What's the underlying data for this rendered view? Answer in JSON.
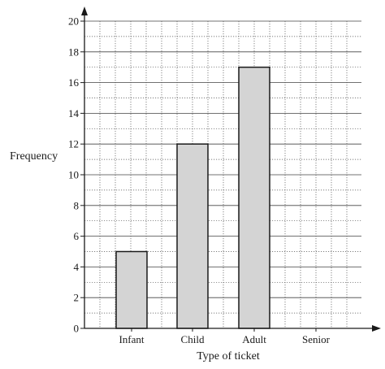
{
  "chart_data": {
    "type": "bar",
    "categories": [
      "Infant",
      "Child",
      "Adult",
      "Senior"
    ],
    "values": [
      5,
      12,
      17,
      null
    ],
    "xlabel": "Type of ticket",
    "ylabel": "Frequency",
    "ylim": [
      0,
      20
    ],
    "y_ticks": [
      0,
      2,
      4,
      6,
      8,
      10,
      12,
      14,
      16,
      18,
      20
    ],
    "grid": true,
    "bar_color": "#d4d4d4",
    "edge_color": "#1a1a1a"
  }
}
